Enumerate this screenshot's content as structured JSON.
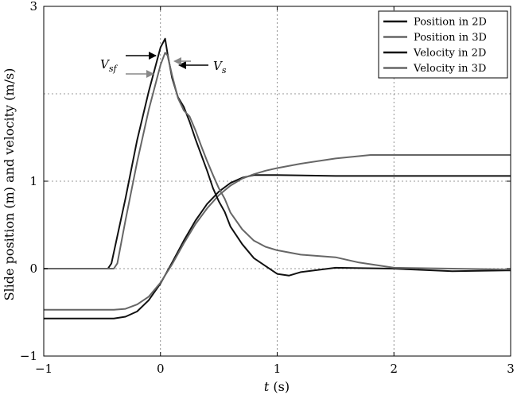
{
  "chart_data": {
    "type": "line",
    "xlabel_var": "t",
    "xlabel_unit": " (s)",
    "ylabel": "Slide position (m) and velocity (m/s)",
    "xlim": [
      -1,
      3
    ],
    "ylim": [
      -1,
      3
    ],
    "x_ticks": [
      -1,
      0,
      1,
      2,
      3
    ],
    "x_tick_labels": [
      "−1",
      "0",
      "1",
      "2",
      "3"
    ],
    "y_ticks": [
      -1,
      0,
      1,
      3
    ],
    "y_tick_labels": [
      "−1",
      "0",
      "1",
      "3"
    ],
    "y_grid": [
      0,
      1,
      2
    ],
    "x_grid": [
      0,
      1,
      2
    ],
    "grid": true,
    "legend_position": "top-right",
    "series": [
      {
        "name": "Position in 2D",
        "color": "#111111",
        "x": [
          -1,
          -0.4,
          -0.3,
          -0.2,
          -0.1,
          0,
          0.1,
          0.2,
          0.3,
          0.4,
          0.5,
          0.6,
          0.7,
          0.8,
          1.0,
          1.5,
          2.0,
          2.5,
          3.0
        ],
        "y": [
          -0.57,
          -0.57,
          -0.55,
          -0.49,
          -0.36,
          -0.17,
          0.07,
          0.32,
          0.55,
          0.74,
          0.88,
          0.98,
          1.04,
          1.07,
          1.07,
          1.06,
          1.06,
          1.06,
          1.06
        ]
      },
      {
        "name": "Position in 3D",
        "color": "#666666",
        "x": [
          -1,
          -0.4,
          -0.3,
          -0.2,
          -0.1,
          0,
          0.1,
          0.2,
          0.3,
          0.4,
          0.5,
          0.6,
          0.7,
          0.8,
          0.9,
          1.0,
          1.2,
          1.5,
          1.8,
          2.0,
          2.5,
          3.0
        ],
        "y": [
          -0.47,
          -0.47,
          -0.46,
          -0.41,
          -0.32,
          -0.16,
          0.05,
          0.29,
          0.51,
          0.69,
          0.84,
          0.95,
          1.03,
          1.08,
          1.12,
          1.15,
          1.2,
          1.26,
          1.3,
          1.3,
          1.3,
          1.3
        ]
      },
      {
        "name": "Velocity in 2D",
        "color": "#111111",
        "x": [
          -1,
          -0.45,
          -0.42,
          -0.3,
          -0.2,
          -0.1,
          0,
          0.04,
          0.06,
          0.1,
          0.15,
          0.2,
          0.25,
          0.3,
          0.35,
          0.4,
          0.45,
          0.5,
          0.55,
          0.6,
          0.7,
          0.8,
          0.9,
          1.0,
          1.1,
          1.2,
          1.5,
          2.0,
          2.5,
          3.0
        ],
        "y": [
          0,
          0,
          0.06,
          0.8,
          1.47,
          2.03,
          2.53,
          2.63,
          2.46,
          2.18,
          1.96,
          1.85,
          1.68,
          1.48,
          1.3,
          1.12,
          0.92,
          0.77,
          0.65,
          0.48,
          0.28,
          0.12,
          0.03,
          -0.06,
          -0.08,
          -0.04,
          0.01,
          0.0,
          -0.03,
          -0.02
        ]
      },
      {
        "name": "Velocity in 3D",
        "color": "#666666",
        "x": [
          -1,
          -0.4,
          -0.37,
          -0.3,
          -0.2,
          -0.1,
          0,
          0.04,
          0.06,
          0.1,
          0.15,
          0.2,
          0.25,
          0.3,
          0.35,
          0.4,
          0.45,
          0.5,
          0.55,
          0.6,
          0.7,
          0.8,
          0.9,
          1.0,
          1.2,
          1.5,
          1.7,
          2.0,
          2.5,
          3.0
        ],
        "y": [
          0,
          0,
          0.06,
          0.55,
          1.22,
          1.82,
          2.33,
          2.47,
          2.44,
          2.21,
          1.95,
          1.81,
          1.74,
          1.58,
          1.4,
          1.23,
          1.07,
          0.92,
          0.8,
          0.64,
          0.45,
          0.32,
          0.25,
          0.21,
          0.16,
          0.13,
          0.07,
          0.01,
          0.0,
          -0.01
        ]
      }
    ],
    "annotations": {
      "vsf_main": "V",
      "vsf_sub": "sf",
      "vs_main": "V",
      "vs_sub": "s"
    }
  }
}
